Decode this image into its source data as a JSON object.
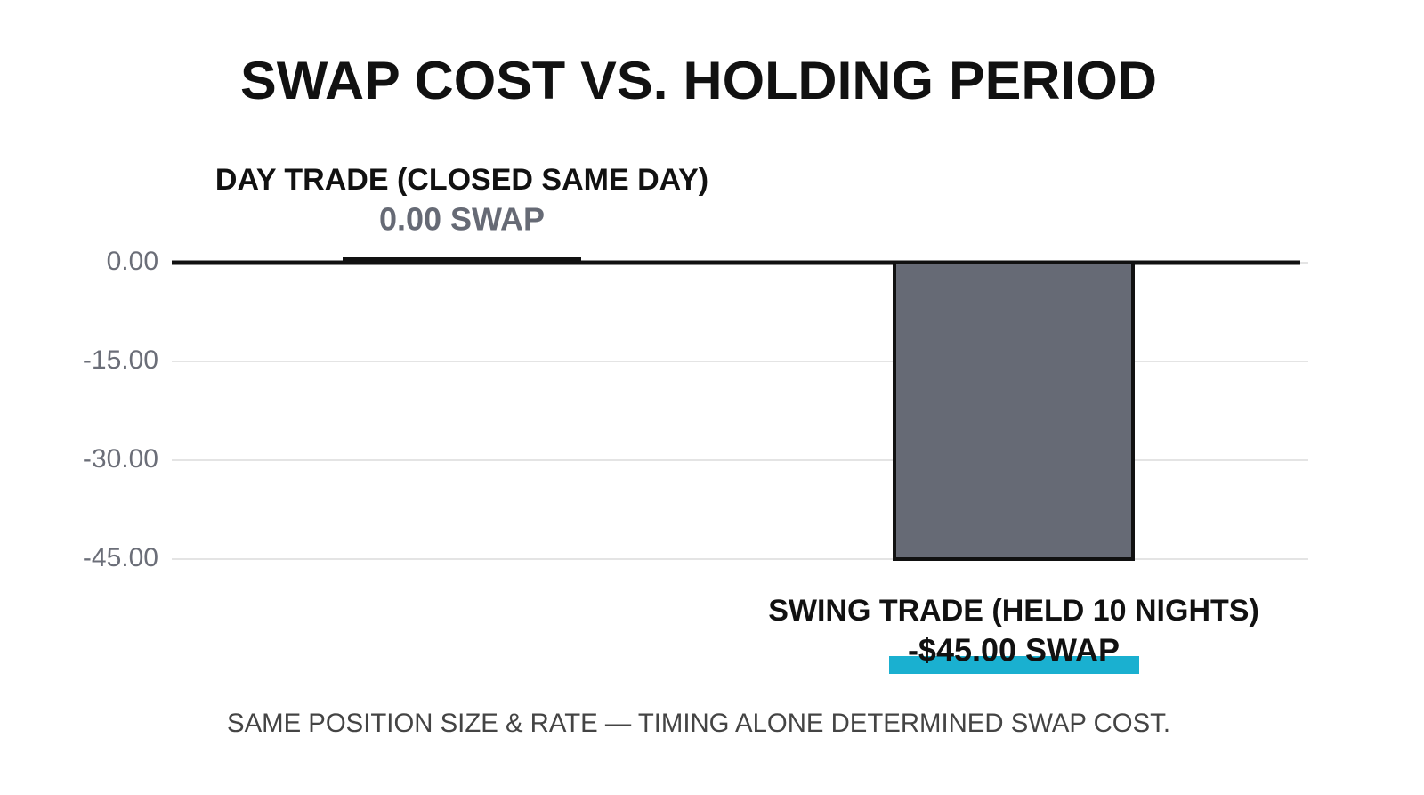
{
  "chart_data": {
    "type": "bar",
    "title": "SWAP COST VS. HOLDING PERIOD",
    "categories": [
      "DAY TRADE (CLOSED SAME DAY)",
      "SWING TRADE (HELD 10 NIGHTS)"
    ],
    "values": [
      0,
      -45
    ],
    "value_labels": [
      "0.00 SWAP",
      "-$45.00 SWAP"
    ],
    "color": "#666a75",
    "highlight_color": "#1ab0d0",
    "ylim": [
      -45,
      0
    ],
    "yticks": [
      {
        "value": 0,
        "label": "0.00"
      },
      {
        "value": -15,
        "label": "-15.00"
      },
      {
        "value": -30,
        "label": "-30.00"
      },
      {
        "value": -45,
        "label": "-45.00"
      }
    ],
    "grid": true,
    "footnote": "SAME POSITION SIZE & RATE — TIMING ALONE DETERMINED SWAP COST."
  }
}
